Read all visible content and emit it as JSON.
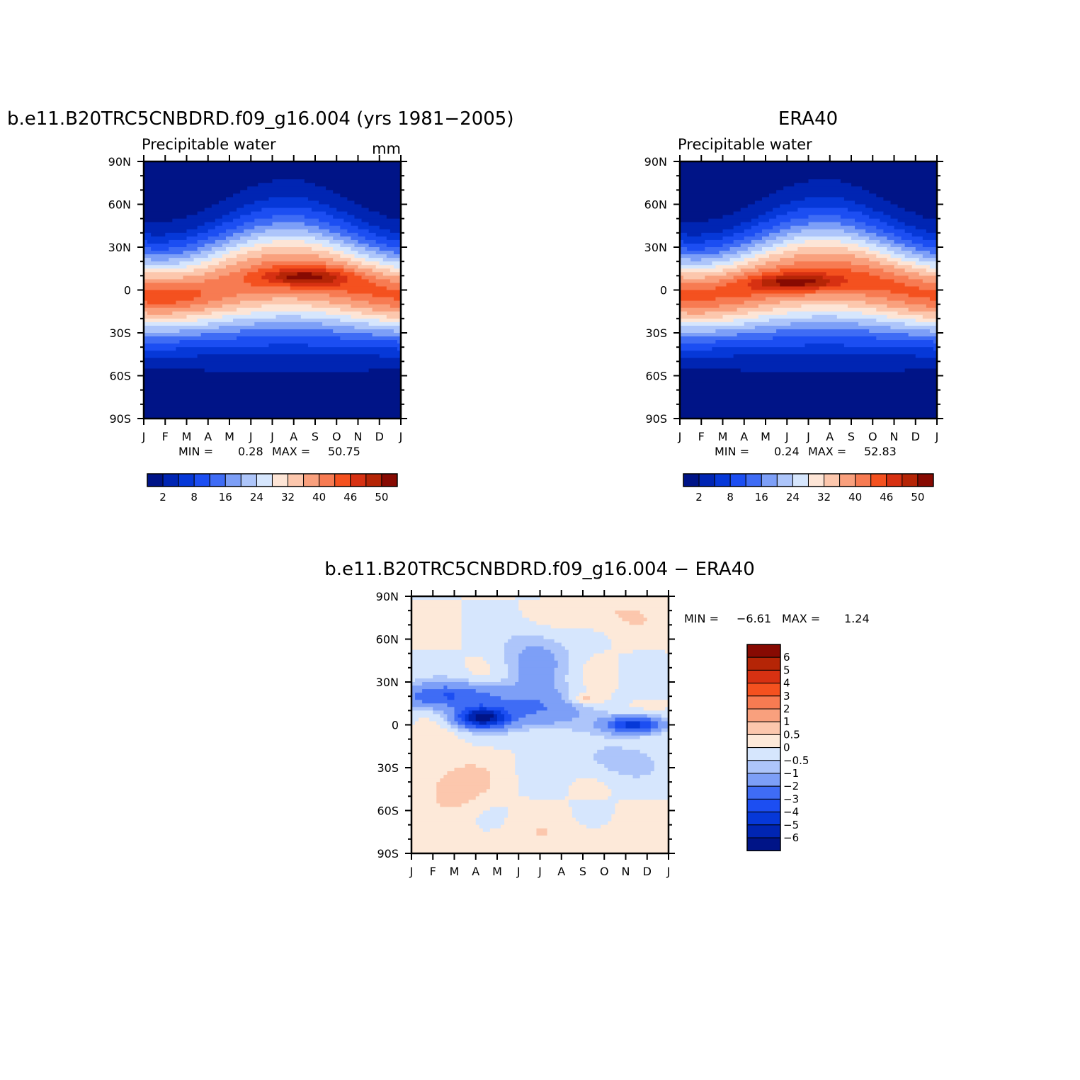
{
  "chart_data": [
    {
      "type": "heatmap",
      "title": "b.e11.B20TRC5CNBDRD.f09_g16.004 (yrs 1981-2005)",
      "subtitle": "Precipitable water",
      "units": "mm",
      "x_ticks": [
        "J",
        "F",
        "M",
        "A",
        "M",
        "J",
        "J",
        "A",
        "S",
        "O",
        "N",
        "D",
        "J"
      ],
      "y_ticks": [
        "90N",
        "60N",
        "30N",
        "0",
        "30S",
        "60S",
        "90S"
      ],
      "min_label": "MIN =",
      "min_value": "0.28",
      "max_label": "MAX =",
      "max_value": "50.75",
      "colorbar_labels": [
        "2",
        "8",
        "16",
        "24",
        "32",
        "40",
        "46",
        "50"
      ],
      "peak": {
        "month": 7.4,
        "lat": 9,
        "value": 50.75
      }
    },
    {
      "type": "heatmap",
      "title": "ERA40",
      "subtitle": "Precipitable water",
      "units": "",
      "x_ticks": [
        "J",
        "F",
        "M",
        "A",
        "M",
        "J",
        "J",
        "A",
        "S",
        "O",
        "N",
        "D",
        "J"
      ],
      "y_ticks": [
        "90N",
        "60N",
        "30N",
        "0",
        "30S",
        "60S",
        "90S"
      ],
      "min_label": "MIN =",
      "min_value": "0.24",
      "max_label": "MAX =",
      "max_value": "52.83",
      "colorbar_labels": [
        "2",
        "8",
        "16",
        "24",
        "32",
        "40",
        "46",
        "50"
      ],
      "peak": {
        "month": 5.5,
        "lat": 5,
        "value": 52.83
      }
    },
    {
      "type": "heatmap",
      "title": "b.e11.B20TRC5CNBDRD.f09_g16.004 - ERA40",
      "subtitle": "",
      "units": "",
      "x_ticks": [
        "J",
        "F",
        "M",
        "A",
        "M",
        "J",
        "J",
        "A",
        "S",
        "O",
        "N",
        "D",
        "J"
      ],
      "y_ticks": [
        "90N",
        "60N",
        "30N",
        "0",
        "30S",
        "60S",
        "90S"
      ],
      "min_label": "MIN =",
      "min_value": "-6.61",
      "max_label": "MAX =",
      "max_value": "1.24",
      "colorbar_labels": [
        "6",
        "5",
        "4",
        "3",
        "2",
        "1",
        "0.5",
        "0",
        "-0.5",
        "-1",
        "-2",
        "-3",
        "-4",
        "-5",
        "-6"
      ]
    }
  ],
  "colors": {
    "seq_palette": [
      "#001487",
      "#0025b3",
      "#0638d8",
      "#1c4ef2",
      "#3f6cf5",
      "#7d9ff7",
      "#adc5fa",
      "#d6e6fd",
      "#fde5d6",
      "#fcc7ad",
      "#f9a07d",
      "#f77b52",
      "#f4511f",
      "#d73112",
      "#b52506",
      "#870a02"
    ],
    "diff_palette": [
      "#001487",
      "#0025b3",
      "#0638d8",
      "#1c4ef2",
      "#3f6cf5",
      "#7d9ff7",
      "#adc5fa",
      "#d6e6fd",
      "#fde9d9",
      "#fcc7ad",
      "#f9a07d",
      "#f77b52",
      "#f4511f",
      "#d73112",
      "#b52506",
      "#870a02"
    ]
  }
}
